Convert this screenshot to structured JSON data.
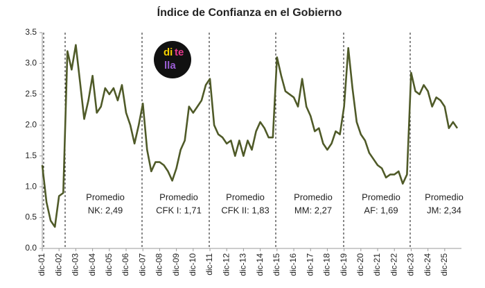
{
  "chart_data": {
    "type": "line",
    "title": "Índice de Confianza en el Gobierno",
    "logo": [
      "di",
      "te",
      "lla"
    ],
    "categories": [
      "dic-01",
      null,
      null,
      null,
      "dic-02",
      null,
      null,
      null,
      "dic-03",
      null,
      null,
      null,
      "dic-04",
      null,
      null,
      null,
      "dic-05",
      null,
      null,
      null,
      "dic-06",
      null,
      null,
      null,
      "dic-07",
      null,
      null,
      null,
      "dic-08",
      null,
      null,
      null,
      "dic-09",
      null,
      null,
      null,
      "dic-10",
      null,
      null,
      null,
      "dic-11",
      null,
      null,
      null,
      "dic-12",
      null,
      null,
      null,
      "dic-13",
      null,
      null,
      null,
      "dic-14",
      null,
      null,
      null,
      "dic-15",
      null,
      null,
      null,
      "dic-16",
      null,
      null,
      null,
      "dic-17",
      null,
      null,
      null,
      "dic-18",
      null,
      null,
      null,
      "dic-19",
      null,
      null,
      null,
      "dic-20",
      null,
      null,
      null,
      "dic-21",
      null,
      null,
      null,
      "dic-22",
      null,
      null,
      null,
      "dic-23",
      null,
      null,
      null,
      "dic-24",
      null,
      null,
      null,
      "dic-25",
      null,
      null,
      null
    ],
    "series": [
      {
        "color": "#4f5a28",
        "values": [
          1.35,
          0.75,
          0.45,
          0.35,
          0.85,
          0.9,
          3.2,
          2.9,
          3.3,
          2.7,
          2.1,
          2.4,
          2.8,
          2.2,
          2.3,
          2.6,
          2.5,
          2.6,
          2.4,
          2.65,
          2.2,
          2.0,
          1.7,
          2.0,
          2.35,
          1.6,
          1.25,
          1.4,
          1.4,
          1.35,
          1.25,
          1.1,
          1.3,
          1.6,
          1.75,
          2.3,
          2.2,
          2.3,
          2.4,
          2.65,
          2.75,
          2.0,
          1.85,
          1.8,
          1.7,
          1.75,
          1.5,
          1.75,
          1.5,
          1.75,
          1.6,
          1.9,
          2.05,
          1.95,
          1.8,
          1.8,
          3.1,
          2.8,
          2.55,
          2.5,
          2.45,
          2.3,
          2.75,
          2.3,
          2.15,
          1.9,
          1.95,
          1.7,
          1.6,
          1.7,
          1.9,
          1.85,
          2.3,
          3.25,
          2.6,
          2.05,
          1.85,
          1.75,
          1.55,
          1.45,
          1.35,
          1.3,
          1.15,
          1.2,
          1.2,
          1.25,
          1.05,
          1.2,
          2.85,
          2.55,
          2.5,
          2.65,
          2.55,
          2.3,
          2.45,
          2.4,
          2.3,
          1.95,
          2.05,
          1.95
        ]
      }
    ],
    "ylim": [
      0,
      3.5
    ],
    "yticks": [
      {
        "value": 0,
        "label": "0.0"
      },
      0.5,
      {
        "value": 1,
        "label": "1.0"
      },
      1.5,
      {
        "value": 2,
        "label": "2.0"
      },
      2.5,
      {
        "value": 3,
        "label": "3.0"
      },
      3.5
    ],
    "grid": false,
    "annotations": [
      [
        "Promedio",
        "NK: 2,49"
      ],
      [
        "Promedio",
        "CFK I: 1,71"
      ],
      [
        "Promedio",
        "CFK II: 1,83"
      ],
      [
        "Promedio",
        "MM: 2,27"
      ],
      [
        "Promedio",
        "AF: 1,69"
      ],
      [
        "Promedio",
        "JM: 2,34"
      ]
    ]
  }
}
